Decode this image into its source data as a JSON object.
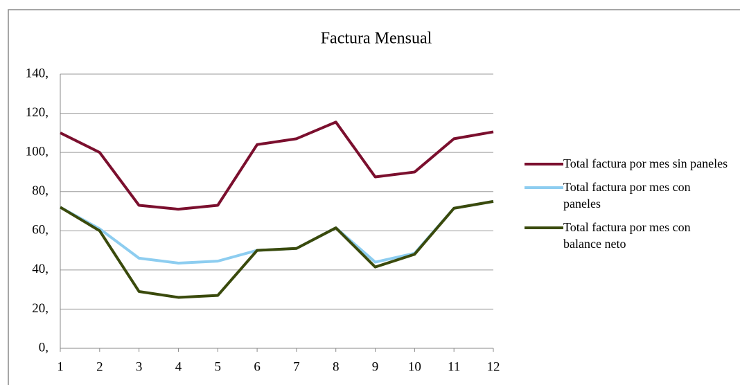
{
  "chart_data": {
    "type": "line",
    "title": "Factura Mensual",
    "categories": [
      "1",
      "2",
      "3",
      "4",
      "5",
      "6",
      "7",
      "8",
      "9",
      "10",
      "11",
      "12"
    ],
    "series": [
      {
        "name": "Total factura por mes sin paneles",
        "color": "#7b0f2e",
        "values": [
          110,
          100,
          73,
          71,
          73,
          104,
          107,
          115.5,
          87.5,
          90,
          107,
          110.5
        ]
      },
      {
        "name": "Total factura por mes con paneles",
        "color": "#8dcdf0",
        "values": [
          72,
          61,
          46,
          43.5,
          44.5,
          50,
          51,
          61.5,
          44,
          48.5,
          71.5,
          75
        ]
      },
      {
        "name": "Total factura por mes con balance neto",
        "color": "#3a4a0c",
        "values": [
          72,
          60,
          29,
          26,
          27,
          50,
          51,
          61.5,
          41.5,
          48,
          71.5,
          75
        ]
      }
    ],
    "ylim": [
      0,
      140
    ],
    "yticks": [
      {
        "value": 0,
        "label": "0,"
      },
      {
        "value": 20,
        "label": "20,"
      },
      {
        "value": 40,
        "label": "40,"
      },
      {
        "value": 60,
        "label": "60,"
      },
      {
        "value": 80,
        "label": "80,"
      },
      {
        "value": 100,
        "label": "100,"
      },
      {
        "value": 120,
        "label": "120,"
      },
      {
        "value": 140,
        "label": "140,"
      }
    ],
    "grid": true,
    "legend": "right"
  }
}
